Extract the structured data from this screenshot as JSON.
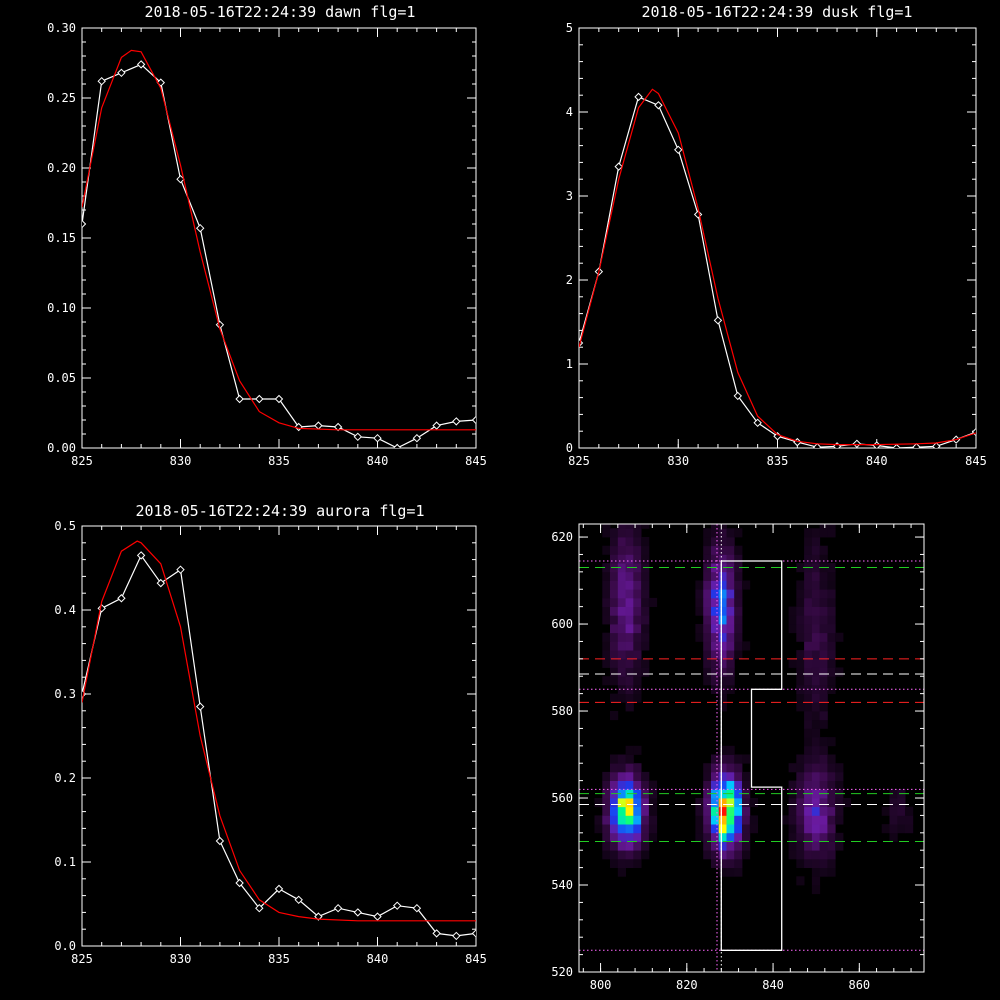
{
  "chart_data": [
    {
      "type": "line",
      "title": "2018-05-16T22:24:39 dawn flg=1",
      "xlim": [
        825,
        845
      ],
      "ylim": [
        0,
        0.3
      ],
      "xticks": [
        "825",
        "830",
        "835",
        "840",
        "845"
      ],
      "yticks": [
        "0.00",
        "0.05",
        "0.10",
        "0.15",
        "0.20",
        "0.25",
        "0.30"
      ],
      "colors": {
        "data": "#ffffff",
        "fit": "#ff0000"
      },
      "series": [
        {
          "role": "data",
          "marker": "diamond",
          "x": [
            825,
            826,
            827,
            828,
            829,
            830,
            831,
            832,
            833,
            834,
            835,
            836,
            837,
            838,
            839,
            840,
            841,
            842,
            843,
            844,
            845
          ],
          "y": [
            0.16,
            0.262,
            0.268,
            0.274,
            0.261,
            0.192,
            0.157,
            0.088,
            0.035,
            0.035,
            0.035,
            0.015,
            0.016,
            0.015,
            0.008,
            0.007,
            0.0,
            0.007,
            0.016,
            0.019,
            0.02
          ]
        },
        {
          "role": "fit",
          "x": [
            825,
            826,
            827,
            827.5,
            828,
            829,
            830,
            831,
            832,
            833,
            834,
            835,
            836,
            838,
            845
          ],
          "y": [
            0.172,
            0.243,
            0.279,
            0.284,
            0.283,
            0.257,
            0.202,
            0.14,
            0.085,
            0.048,
            0.026,
            0.018,
            0.014,
            0.013,
            0.013
          ]
        }
      ]
    },
    {
      "type": "line",
      "title": "2018-05-16T22:24:39 dusk flg=1",
      "xlim": [
        825,
        845
      ],
      "ylim": [
        0,
        5
      ],
      "xticks": [
        "825",
        "830",
        "835",
        "840",
        "845"
      ],
      "yticks": [
        "0",
        "1",
        "2",
        "3",
        "4",
        "5"
      ],
      "colors": {
        "data": "#ffffff",
        "fit": "#ff0000"
      },
      "series": [
        {
          "role": "data",
          "marker": "diamond",
          "x": [
            825,
            826,
            827,
            828,
            829,
            830,
            831,
            832,
            833,
            834,
            835,
            836,
            837,
            838,
            839,
            840,
            841,
            842,
            843,
            844,
            845
          ],
          "y": [
            1.25,
            2.1,
            3.35,
            4.18,
            4.08,
            3.55,
            2.78,
            1.52,
            0.62,
            0.3,
            0.14,
            0.07,
            0.01,
            0.02,
            0.05,
            0.03,
            0.0,
            0.01,
            0.02,
            0.1,
            0.19
          ]
        },
        {
          "role": "fit",
          "x": [
            825,
            826,
            827,
            828,
            828.7,
            829,
            830,
            831,
            832,
            833,
            834,
            835,
            836,
            837,
            838,
            840,
            842,
            843,
            844,
            845
          ],
          "y": [
            1.2,
            2.1,
            3.2,
            4.05,
            4.27,
            4.22,
            3.75,
            2.85,
            1.78,
            0.9,
            0.38,
            0.16,
            0.08,
            0.05,
            0.04,
            0.04,
            0.05,
            0.06,
            0.1,
            0.18
          ]
        }
      ]
    },
    {
      "type": "line",
      "title": "2018-05-16T22:24:39 aurora flg=1",
      "xlim": [
        825,
        845
      ],
      "ylim": [
        0,
        0.5
      ],
      "xticks": [
        "825",
        "830",
        "835",
        "840",
        "845"
      ],
      "yticks": [
        "0.0",
        "0.1",
        "0.2",
        "0.3",
        "0.4",
        "0.5"
      ],
      "colors": {
        "data": "#ffffff",
        "fit": "#ff0000"
      },
      "series": [
        {
          "role": "data",
          "marker": "diamond",
          "x": [
            825,
            826,
            827,
            828,
            829,
            830,
            831,
            832,
            833,
            834,
            835,
            836,
            837,
            838,
            839,
            840,
            841,
            842,
            843,
            844,
            845
          ],
          "y": [
            0.3,
            0.402,
            0.414,
            0.465,
            0.432,
            0.448,
            0.285,
            0.125,
            0.075,
            0.045,
            0.068,
            0.055,
            0.035,
            0.045,
            0.04,
            0.035,
            0.048,
            0.045,
            0.015,
            0.012,
            0.015
          ]
        },
        {
          "role": "fit",
          "x": [
            825,
            826,
            827,
            827.8,
            828,
            829,
            830,
            831,
            832,
            833,
            834,
            835,
            836,
            837,
            839,
            845
          ],
          "y": [
            0.29,
            0.41,
            0.47,
            0.482,
            0.48,
            0.455,
            0.38,
            0.25,
            0.155,
            0.09,
            0.055,
            0.04,
            0.035,
            0.032,
            0.03,
            0.03
          ]
        }
      ]
    },
    {
      "type": "heatmap",
      "title": "",
      "xlim": [
        795,
        875
      ],
      "ylim": [
        520,
        623
      ],
      "xticks": [
        "800",
        "820",
        "840",
        "860"
      ],
      "yticks": [
        "520",
        "540",
        "560",
        "580",
        "600",
        "620"
      ],
      "colorscale": [
        "#000000",
        "#3a0a4a",
        "#6a1aa0",
        "#1a3af0",
        "#00c8ff",
        "#00ff80",
        "#ffff00",
        "#ff0000"
      ],
      "blobs": [
        {
          "x": 806,
          "y": 605,
          "sx": 2.6,
          "sy": 12,
          "peak": 0.24
        },
        {
          "x": 828,
          "y": 604,
          "sx": 2.3,
          "sy": 9,
          "peak": 0.42
        },
        {
          "x": 850,
          "y": 598,
          "sx": 2.8,
          "sy": 14,
          "peak": 0.12
        },
        {
          "x": 806,
          "y": 557,
          "sx": 2.6,
          "sy": 5,
          "peak": 0.78
        },
        {
          "x": 829,
          "y": 557,
          "sx": 2.4,
          "sy": 5.5,
          "peak": 1.0
        },
        {
          "x": 850,
          "y": 557,
          "sx": 3.0,
          "sy": 7,
          "peak": 0.28
        },
        {
          "x": 869,
          "y": 557,
          "sx": 2.0,
          "sy": 4,
          "peak": 0.08
        }
      ],
      "hlines": [
        {
          "y": 623,
          "color": "#22cc22",
          "style": "dashed"
        },
        {
          "y": 614.5,
          "color": "#ff66ff",
          "style": "dotted"
        },
        {
          "y": 613,
          "color": "#22cc22",
          "style": "dashed"
        },
        {
          "y": 592,
          "color": "#ff2222",
          "style": "dashed"
        },
        {
          "y": 588.5,
          "color": "#ffffff",
          "style": "dashed"
        },
        {
          "y": 585,
          "color": "#ff66ff",
          "style": "dotted"
        },
        {
          "y": 582,
          "color": "#ff2222",
          "style": "dashed"
        },
        {
          "y": 562,
          "color": "#ff66ff",
          "style": "dotted"
        },
        {
          "y": 561,
          "color": "#22cc22",
          "style": "dashed"
        },
        {
          "y": 558.5,
          "color": "#ffffff",
          "style": "dashed"
        },
        {
          "y": 550,
          "color": "#22cc22",
          "style": "dashed"
        },
        {
          "y": 525,
          "color": "#ff66ff",
          "style": "dotted"
        }
      ],
      "vlines": [
        {
          "x": 827,
          "color": "#ff66ff",
          "style": "dotted"
        },
        {
          "x": 828,
          "color": "#ffffff",
          "style": "dotted"
        }
      ],
      "outline": [
        [
          828,
          614.5
        ],
        [
          842,
          614.5
        ],
        [
          842,
          585
        ],
        [
          835,
          585
        ],
        [
          835,
          562.5
        ],
        [
          842,
          562.5
        ],
        [
          842,
          525
        ],
        [
          828,
          525
        ],
        [
          828,
          614.5
        ]
      ]
    }
  ]
}
